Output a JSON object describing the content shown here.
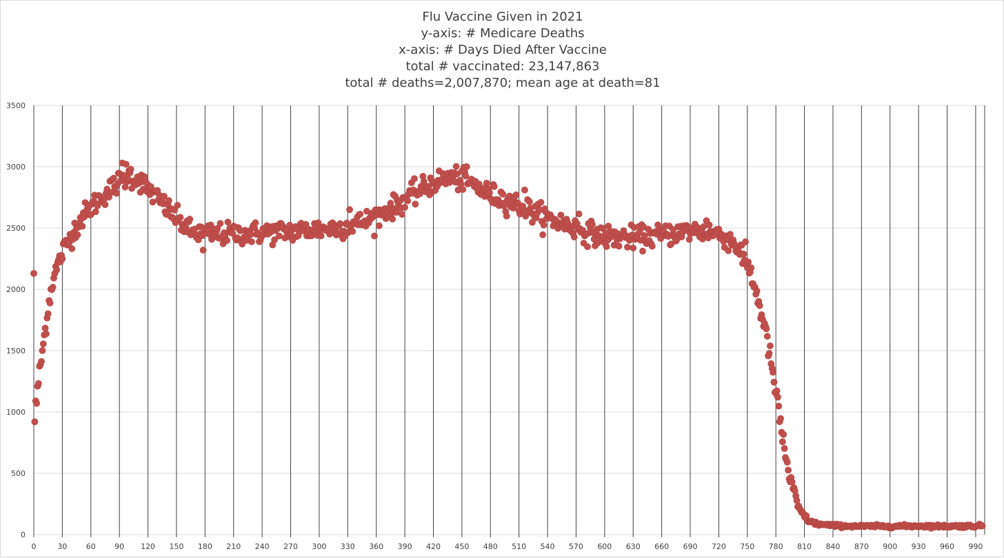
{
  "chart_data": {
    "type": "scatter",
    "title_lines": [
      "Flu Vaccine Given in 2021",
      "y-axis: # Medicare Deaths",
      "x-axis: # Days Died After Vaccine",
      "total # vaccinated: 23,147,863",
      "total # deaths=2,007,870; mean age at death=81"
    ],
    "xlabel": "",
    "ylabel": "",
    "xlim": [
      0,
      1000
    ],
    "ylim": [
      0,
      3500
    ],
    "x_ticks": [
      0,
      30,
      60,
      90,
      120,
      150,
      180,
      210,
      240,
      270,
      300,
      330,
      360,
      390,
      420,
      450,
      480,
      510,
      540,
      570,
      600,
      630,
      660,
      690,
      720,
      750,
      780,
      810,
      840,
      870,
      900,
      930,
      960,
      990
    ],
    "y_ticks": [
      0,
      500,
      1000,
      1500,
      2000,
      2500,
      3000,
      3500
    ],
    "grid": "both",
    "marker_color": "#c0504d",
    "curve_anchors": {
      "x": [
        0,
        2,
        5,
        10,
        15,
        20,
        30,
        40,
        50,
        60,
        75,
        90,
        100,
        110,
        120,
        135,
        150,
        165,
        180,
        200,
        240,
        280,
        320,
        350,
        380,
        400,
        420,
        440,
        460,
        480,
        500,
        520,
        540,
        560,
        580,
        600,
        630,
        660,
        690,
        710,
        725,
        735,
        745,
        750,
        755,
        760,
        765,
        770,
        775,
        780,
        785,
        790,
        795,
        800,
        805,
        810,
        815,
        820,
        825,
        830,
        840,
        850,
        870,
        900,
        930,
        960,
        990,
        997
      ],
      "y": [
        2130,
        1000,
        1250,
        1550,
        1850,
        2080,
        2300,
        2450,
        2580,
        2670,
        2780,
        2880,
        2920,
        2900,
        2820,
        2700,
        2580,
        2470,
        2450,
        2450,
        2460,
        2480,
        2500,
        2560,
        2680,
        2780,
        2870,
        2920,
        2860,
        2770,
        2720,
        2650,
        2580,
        2530,
        2470,
        2430,
        2420,
        2440,
        2480,
        2470,
        2440,
        2380,
        2300,
        2200,
        2100,
        1950,
        1800,
        1620,
        1400,
        1150,
        900,
        650,
        450,
        300,
        200,
        150,
        110,
        95,
        85,
        80,
        75,
        70,
        68,
        68,
        70,
        68,
        70,
        72
      ]
    },
    "noise_sd": 45,
    "point_count": 998,
    "outliers": [
      {
        "x": 0,
        "y": 2130
      },
      {
        "x": 1,
        "y": 920
      },
      {
        "x": 2,
        "y": 1090
      },
      {
        "x": 93,
        "y": 3030
      },
      {
        "x": 97,
        "y": 3020
      },
      {
        "x": 102,
        "y": 2980
      },
      {
        "x": 178,
        "y": 2320
      },
      {
        "x": 332,
        "y": 2650
      },
      {
        "x": 452,
        "y": 2995
      },
      {
        "x": 516,
        "y": 2810
      },
      {
        "x": 573,
        "y": 2615
      },
      {
        "x": 707,
        "y": 2560
      },
      {
        "x": 745,
        "y": 2210
      }
    ]
  }
}
